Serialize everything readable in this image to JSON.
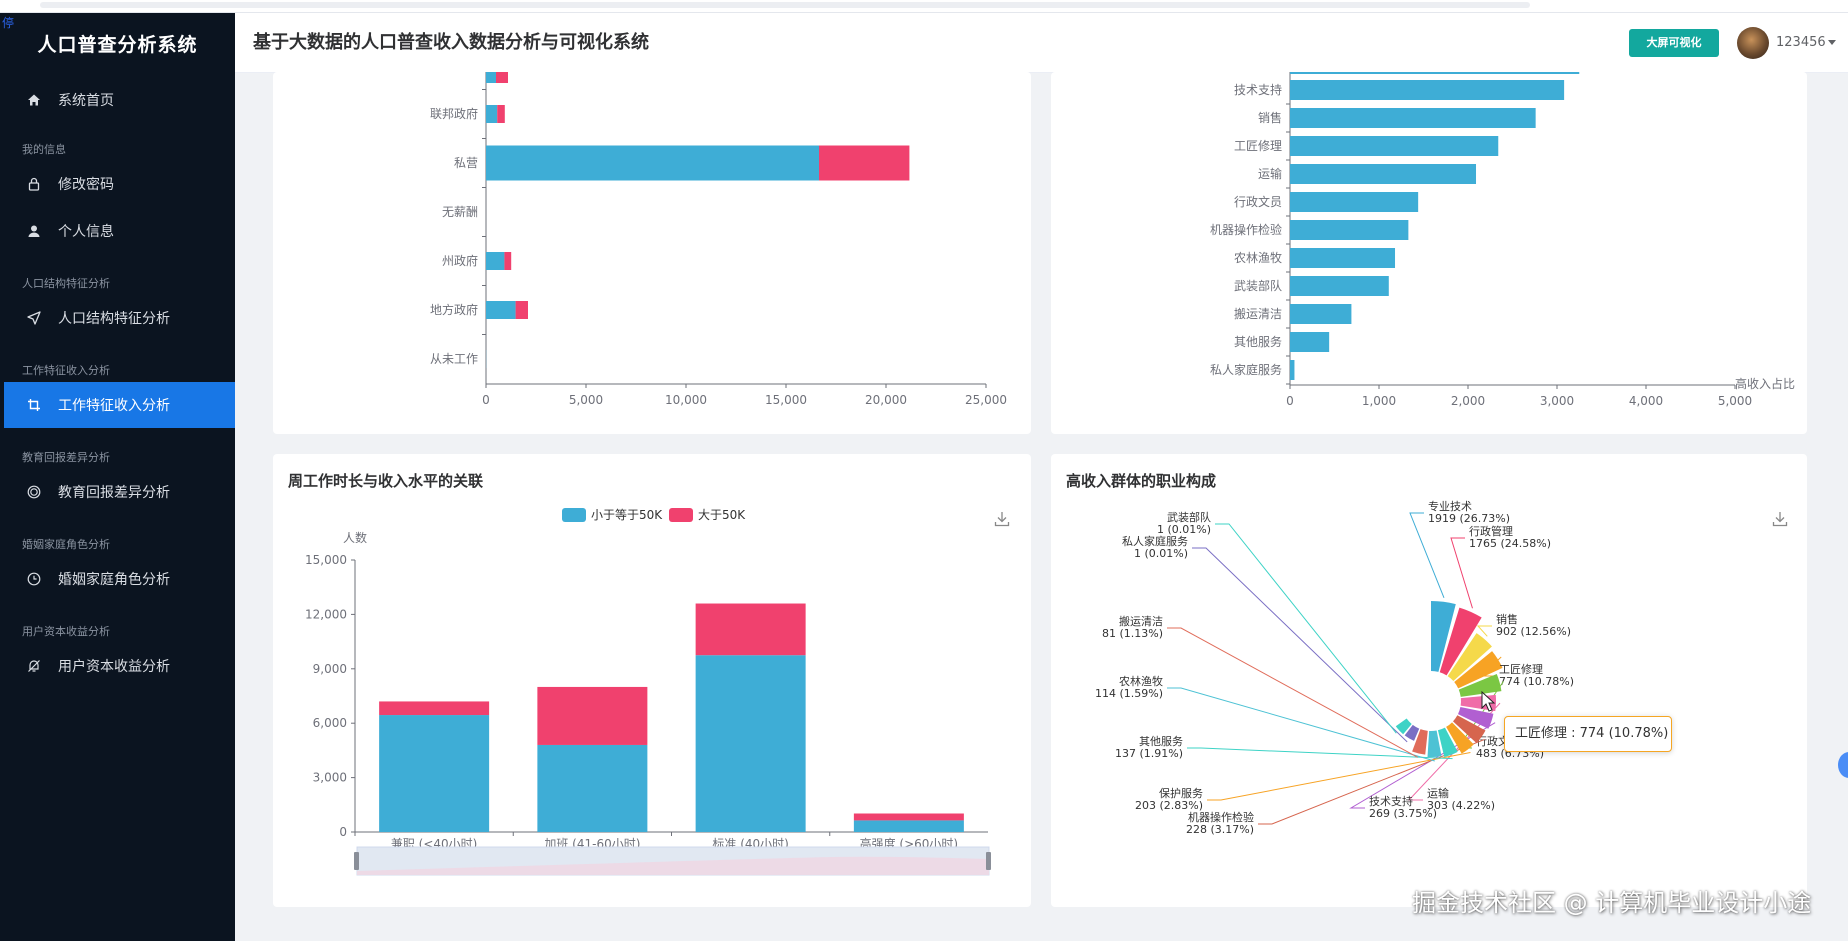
{
  "app": {
    "brand": "人口普查分析系统",
    "page_title": "基于大数据的人口普查收入数据分析与可视化系统",
    "bigscreen_btn": "大屏可视化",
    "username": "123456",
    "stop_glyph": "停"
  },
  "sidebar": {
    "home": "系统首页",
    "groups": {
      "my_info": "我的信息",
      "population": "人口结构特征分析",
      "work": "工作特征收入分析",
      "edu": "教育回报差异分析",
      "marriage": "婚姻家庭角色分析",
      "capital": "用户资本收益分析"
    },
    "items": {
      "change_password": "修改密码",
      "profile": "个人信息",
      "population": "人口结构特征分析",
      "work": "工作特征收入分析",
      "edu": "教育回报差异分析",
      "marriage": "婚姻家庭角色分析",
      "capital": "用户资本收益分析"
    }
  },
  "cards": {
    "hours_title": "周工作时长与收入水平的关联",
    "occupation_title": "高收入群体的职业构成"
  },
  "tooltip": {
    "text": "工匠修理 : 774 (10.78%)"
  },
  "watermark": "掘金技术社区 @ 计算机毕业设计小途",
  "colors": {
    "blue": "#3eadd6",
    "pink": "#f0416e",
    "accent": "#1877e6",
    "teal": "#13a89e"
  },
  "chart_data": [
    {
      "type": "bar",
      "orientation": "horizontal",
      "stacked": true,
      "categories": [
        "联邦政府",
        "私营",
        "无薪酬",
        "州政府",
        "地方政府",
        "从未工作"
      ],
      "series": [
        {
          "name": "小于等于50K",
          "values": [
            560,
            16650,
            0,
            920,
            1480,
            7
          ]
        },
        {
          "name": "大于50K",
          "values": [
            380,
            4520,
            0,
            340,
            620,
            0
          ]
        }
      ],
      "partial_top_bar": {
        "values": [
          500,
          600
        ]
      },
      "xticks": [
        "0",
        "5,000",
        "10,000",
        "15,000",
        "20,000",
        "25,000"
      ],
      "xlim": [
        0,
        25000
      ]
    },
    {
      "type": "bar",
      "orientation": "horizontal",
      "categories": [
        "技术支持",
        "销售",
        "工匠修理",
        "运输",
        "行政文员",
        "机器操作检验",
        "农林渔牧",
        "武装部队",
        "搬运清洁",
        "其他服务",
        "私人家庭服务"
      ],
      "values": [
        3080,
        2760,
        2340,
        2090,
        1440,
        1330,
        1180,
        1110,
        690,
        440,
        50
      ],
      "partial_top_bar": {
        "value": 3250
      },
      "xticks": [
        "0",
        "1,000",
        "2,000",
        "3,000",
        "4,000",
        "5,000"
      ],
      "xlim": [
        0,
        5000
      ],
      "xlabel": "高收入占比"
    },
    {
      "type": "bar",
      "stacked": true,
      "title": "周工作时长与收入水平的关联",
      "legend": [
        "小于等于50K",
        "大于50K"
      ],
      "ylabel": "人数",
      "categories": [
        "兼职 (<40小时)",
        "加班 (41-60小时)",
        "标准 (40小时)",
        "高强度 (>60小时)"
      ],
      "series": [
        {
          "name": "小于等于50K",
          "values": [
            6450,
            4800,
            9750,
            640
          ]
        },
        {
          "name": "大于50K",
          "values": [
            750,
            3200,
            2850,
            380
          ]
        }
      ],
      "yticks": [
        "0",
        "3,000",
        "6,000",
        "9,000",
        "12,000",
        "15,000"
      ],
      "ylim": [
        0,
        15000
      ]
    },
    {
      "type": "pie",
      "rose": true,
      "title": "高收入群体的职业构成",
      "slices": [
        {
          "name": "专业技术",
          "value": 1919,
          "pct": "26.73%",
          "label": "1919 (26.73%)",
          "color": "#3eadd6"
        },
        {
          "name": "行政管理",
          "value": 1765,
          "pct": "24.58%",
          "label": "1765 (24.58%)",
          "color": "#f0416e"
        },
        {
          "name": "销售",
          "value": 902,
          "pct": "12.56%",
          "label": "902 (12.56%)",
          "color": "#f5d94a"
        },
        {
          "name": "工匠修理",
          "value": 774,
          "pct": "10.78%",
          "label": "774 (10.78%)",
          "color": "#f7a324"
        },
        {
          "name": "行政文员",
          "value": 483,
          "pct": "6.73%",
          "label": "483 (6.73%)",
          "color": "#7bc743"
        },
        {
          "name": "运输",
          "value": 303,
          "pct": "4.22%",
          "label": "303 (4.22%)",
          "color": "#f06ca8"
        },
        {
          "name": "技术支持",
          "value": 269,
          "pct": "3.75%",
          "label": "269 (3.75%)",
          "color": "#b15fd1"
        },
        {
          "name": "机器操作检验",
          "value": 228,
          "pct": "3.17%",
          "label": "228 (3.17%)",
          "color": "#d6654e"
        },
        {
          "name": "保护服务",
          "value": 203,
          "pct": "2.83%",
          "label": "203 (2.83%)",
          "color": "#f7a324"
        },
        {
          "name": "其他服务",
          "value": 137,
          "pct": "1.91%",
          "label": "137 (1.91%)",
          "color": "#3ed3c6"
        },
        {
          "name": "农林渔牧",
          "value": 114,
          "pct": "1.59%",
          "label": "114 (1.59%)",
          "color": "#4dc2d4"
        },
        {
          "name": "搬运清洁",
          "value": 81,
          "pct": "1.13%",
          "label": "81 (1.13%)",
          "color": "#e06c5a"
        },
        {
          "name": "私人家庭服务",
          "value": 1,
          "pct": "0.01%",
          "label": "1 (0.01%)",
          "color": "#7a6fc4"
        },
        {
          "name": "武装部队",
          "value": 1,
          "pct": "0.01%",
          "label": "1 (0.01%)",
          "color": "#3ed3c6"
        }
      ]
    }
  ]
}
